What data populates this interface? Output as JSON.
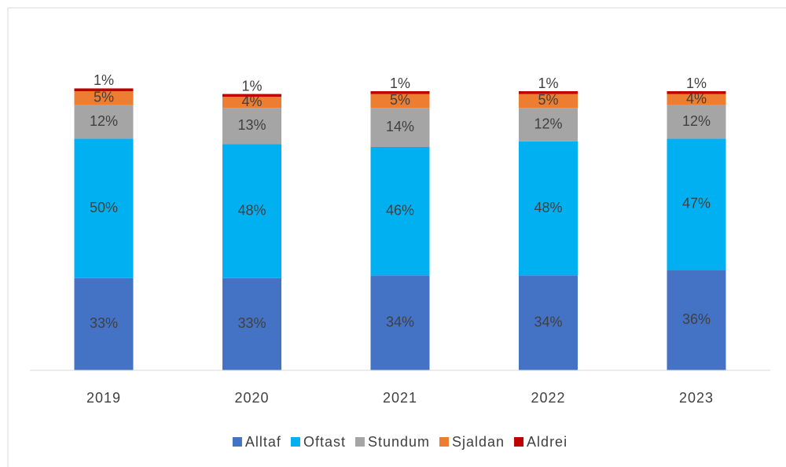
{
  "chart_data": {
    "type": "stacked_bar",
    "categories": [
      "2019",
      "2020",
      "2021",
      "2022",
      "2023"
    ],
    "series": [
      {
        "name": "Alltaf",
        "color": "#4472c4",
        "values": [
          33,
          33,
          34,
          34,
          36
        ],
        "value_labels": [
          "33%",
          "33%",
          "34%",
          "34%",
          "36%"
        ]
      },
      {
        "name": "Oftast",
        "color": "#00b0f0",
        "values": [
          50,
          48,
          46,
          48,
          47
        ],
        "value_labels": [
          "50%",
          "48%",
          "46%",
          "48%",
          "47%"
        ]
      },
      {
        "name": "Stundum",
        "color": "#a5a5a5",
        "values": [
          12,
          13,
          14,
          12,
          12
        ],
        "value_labels": [
          "12%",
          "13%",
          "14%",
          "12%",
          "12%"
        ]
      },
      {
        "name": "Sjaldan",
        "color": "#ed7d31",
        "values": [
          5,
          4,
          5,
          5,
          4
        ],
        "value_labels": [
          "5%",
          "4%",
          "5%",
          "5%",
          "4%"
        ]
      },
      {
        "name": "Aldrei",
        "color": "#c00000",
        "values": [
          1,
          1,
          1,
          1,
          1
        ],
        "value_labels": [
          "1%",
          "1%",
          "1%",
          "1%",
          "1%"
        ]
      }
    ],
    "legend": "bottom"
  }
}
